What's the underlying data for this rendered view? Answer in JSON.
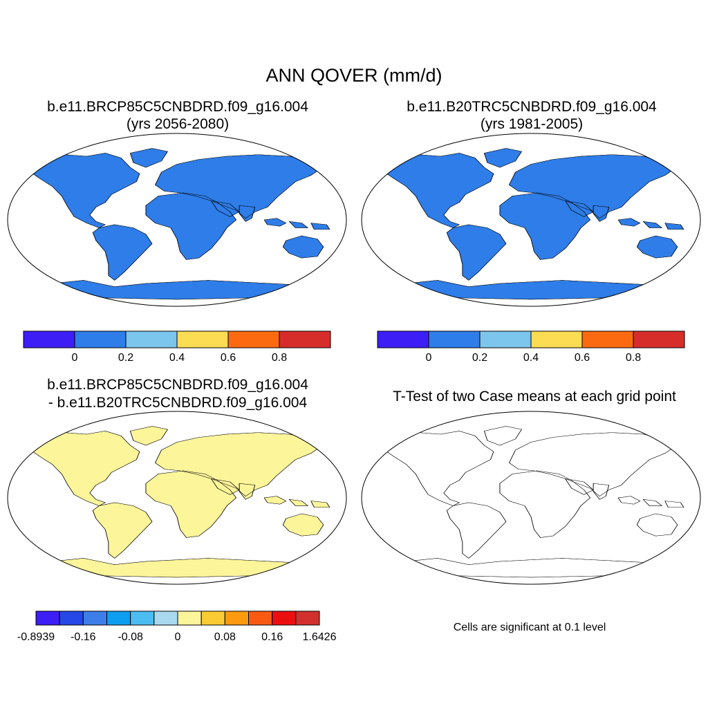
{
  "title": "ANN QOVER (mm/d)",
  "panels": [
    {
      "id": "case",
      "title_line1": "b.e11.BRCP85C5CNBDRD.f09_g16.004",
      "title_line2": "(yrs 2056-2080)",
      "map_type": "filled-contour",
      "colorbar": {
        "colors": [
          "#3d1ef5",
          "#2e7de8",
          "#7cc5ec",
          "#fbdc52",
          "#fb6a10",
          "#d72d2a"
        ],
        "labels": [
          "0",
          "0.2",
          "0.4",
          "0.6",
          "0.8"
        ]
      }
    },
    {
      "id": "control",
      "title_line1": "b.e11.B20TRC5CNBDRD.f09_g16.004",
      "title_line2": "(yrs 1981-2005)",
      "map_type": "filled-contour",
      "colorbar": {
        "colors": [
          "#3d1ef5",
          "#2e7de8",
          "#7cc5ec",
          "#fbdc52",
          "#fb6a10",
          "#d72d2a"
        ],
        "labels": [
          "0",
          "0.2",
          "0.4",
          "0.6",
          "0.8"
        ]
      }
    },
    {
      "id": "difference",
      "title_line1": "b.e11.BRCP85C5CNBDRD.f09_g16.004",
      "title_line2": "- b.e11.B20TRC5CNBDRD.f09_g16.004",
      "map_type": "filled-contour",
      "colorbar": {
        "colors": [
          "#3d1ef5",
          "#2648e6",
          "#3d7ee8",
          "#0f9df0",
          "#4bbdf0",
          "#a8d9ef",
          "#fdf59a",
          "#fbcb35",
          "#fa9a0e",
          "#f85a12",
          "#ec0f12",
          "#d1302d"
        ],
        "labels": [
          "-0.8939",
          "-0.16",
          "-0.08",
          "0",
          "0.08",
          "0.16",
          "1.6426"
        ]
      }
    },
    {
      "id": "ttest",
      "title_line1": "T-Test of two Case means at each grid point",
      "map_type": "significance",
      "significant_color": "#ff0000",
      "footnote": "Cells are significant at 0.1 level"
    }
  ]
}
